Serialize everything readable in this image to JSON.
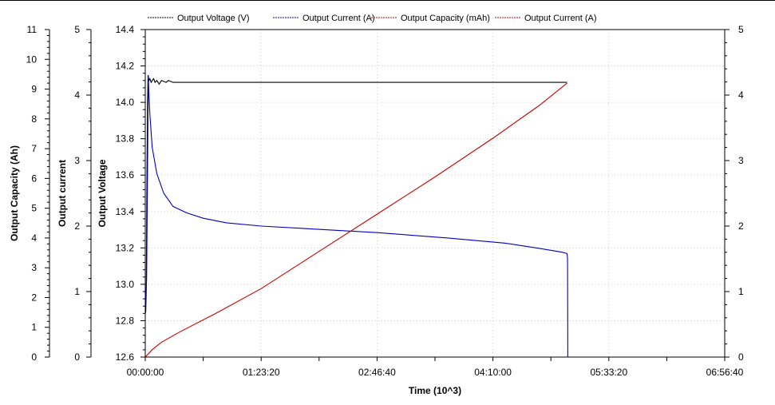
{
  "chart_data": {
    "type": "line",
    "xlabel": "Time (10^3)",
    "x_tick_labels": [
      "00:00:00",
      "01:23:20",
      "02:46:40",
      "04:10:00",
      "05:33:20",
      "06:56:40"
    ],
    "x_ticks_seconds": [
      0,
      5000,
      10000,
      15000,
      20000,
      25000
    ],
    "xlim": [
      0,
      25000
    ],
    "axes": {
      "voltage": {
        "label": "Output Voltage",
        "lim": [
          12.6,
          14.4
        ],
        "ticks": [
          "12.6",
          "12.8",
          "13.0",
          "13.2",
          "13.4",
          "13.6",
          "13.8",
          "14.0",
          "14.2",
          "14.4"
        ]
      },
      "current_left": {
        "label": "Output current",
        "lim": [
          0,
          5
        ],
        "ticks": [
          "0",
          "1",
          "2",
          "3",
          "4",
          "5"
        ]
      },
      "capacity": {
        "label": "Output Capacity (Ah)",
        "lim": [
          0,
          11
        ],
        "ticks": [
          "0",
          "1",
          "2",
          "3",
          "4",
          "5",
          "6",
          "7",
          "8",
          "9",
          "10",
          "11"
        ]
      },
      "current_right": {
        "lim": [
          0,
          5
        ],
        "ticks": [
          "0",
          "1",
          "2",
          "3",
          "4",
          "5"
        ]
      }
    },
    "legend_placement": "top",
    "legend": [
      {
        "label": "Output Voltage (V)",
        "color": "#000000"
      },
      {
        "label": "Output Current (A)",
        "color": "#0000c0"
      },
      {
        "label": "Output Capacity (mAh)",
        "color": "#cc0000"
      },
      {
        "label": "Output Current (A)",
        "color": "#cc0000"
      }
    ],
    "series": [
      {
        "name": "Output Voltage (V)",
        "axis": "voltage",
        "color": "#000000",
        "x": [
          0,
          20,
          40,
          60,
          80,
          100,
          120,
          160,
          200,
          250,
          300,
          360,
          420,
          500,
          600,
          700,
          900,
          1000,
          1200,
          1500,
          18200
        ],
        "y": [
          12.84,
          12.85,
          12.95,
          13.3,
          13.7,
          14.0,
          14.15,
          14.12,
          14.13,
          14.11,
          14.12,
          14.13,
          14.11,
          14.12,
          14.1,
          14.12,
          14.11,
          14.12,
          14.11,
          14.11,
          14.11
        ]
      },
      {
        "name": "Output Current (A)",
        "axis": "current_left",
        "color": "#0000c0",
        "x": [
          0,
          60,
          100,
          130,
          160,
          200,
          300,
          500,
          800,
          1200,
          1800,
          2500,
          3500,
          5000,
          7000,
          10000,
          13000,
          15500,
          17000,
          18000,
          18200,
          18220,
          18230
        ],
        "y": [
          0.7,
          1.2,
          2.9,
          4.3,
          4.0,
          3.7,
          3.2,
          2.8,
          2.5,
          2.3,
          2.2,
          2.12,
          2.05,
          2.0,
          1.96,
          1.9,
          1.82,
          1.74,
          1.66,
          1.6,
          1.58,
          1.5,
          0
        ]
      },
      {
        "name": "Output Capacity (mAh)",
        "axis": "capacity",
        "color": "#cc0000",
        "x": [
          0,
          300,
          700,
          1500,
          3000,
          5000,
          7500,
          10000,
          12500,
          15000,
          17000,
          18200
        ],
        "y": [
          0,
          0.25,
          0.5,
          0.85,
          1.45,
          2.3,
          3.55,
          4.8,
          6.05,
          7.35,
          8.45,
          9.2
        ]
      }
    ]
  }
}
